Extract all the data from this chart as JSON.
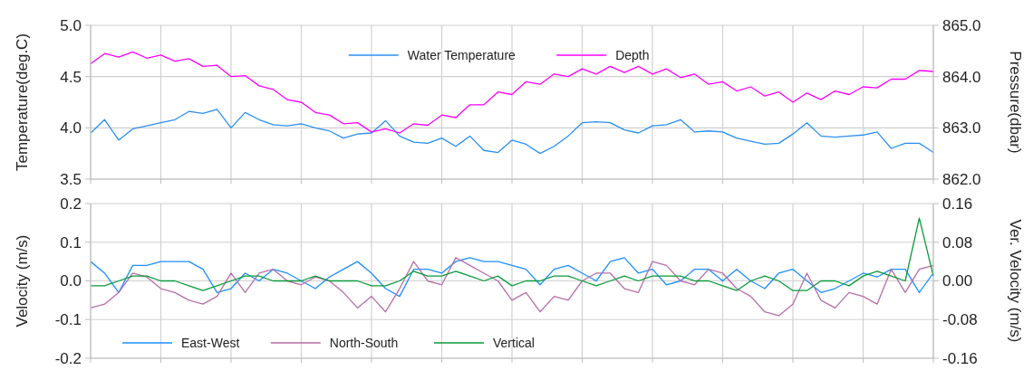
{
  "chart_data": [
    {
      "type": "line",
      "ylabel": "Temperature(deg.C)",
      "y2label": "Pressure(dbar)",
      "categories": [
        null,
        null,
        null,
        null,
        null,
        null,
        null,
        null,
        null,
        null,
        null,
        null,
        null,
        null,
        null,
        null,
        null,
        null,
        null,
        null,
        null,
        null,
        null,
        null,
        null,
        null,
        null,
        null,
        null,
        null,
        null,
        null,
        null,
        null,
        null,
        null,
        null,
        null,
        null,
        null,
        null,
        null,
        null,
        null,
        null,
        null,
        null,
        null,
        null,
        null,
        null,
        null,
        null,
        null,
        null,
        null,
        null,
        null,
        null,
        null,
        null
      ],
      "series": [
        {
          "name": "Water Temperature",
          "color": "#2a8ff0",
          "values": [
            3.95,
            4.08,
            3.88,
            3.99,
            4.02,
            4.05,
            4.08,
            4.16,
            4.14,
            4.18,
            4.0,
            4.15,
            4.08,
            4.03,
            4.02,
            4.04,
            4.0,
            3.97,
            3.9,
            3.94,
            3.95,
            4.07,
            3.92,
            3.86,
            3.85,
            3.9,
            3.82,
            3.92,
            3.78,
            3.76,
            3.88,
            3.84,
            3.75,
            3.82,
            3.92,
            4.05,
            4.06,
            4.05,
            3.98,
            3.95,
            4.02,
            4.03,
            4.08,
            3.96,
            3.97,
            3.96,
            3.9,
            3.87,
            3.84,
            3.85,
            3.94,
            4.05,
            3.92,
            3.91,
            3.92,
            3.93,
            3.96,
            3.8,
            3.85,
            3.85,
            3.76
          ]
        },
        {
          "name": "Depth",
          "color": "#ff00ff",
          "axis": "y2",
          "values": [
            864.25,
            864.45,
            864.38,
            864.48,
            864.36,
            864.42,
            864.3,
            864.35,
            864.2,
            864.22,
            864.0,
            864.02,
            863.82,
            863.75,
            863.55,
            863.5,
            863.3,
            863.25,
            863.08,
            863.1,
            862.92,
            862.98,
            862.9,
            863.08,
            863.05,
            863.25,
            863.2,
            863.45,
            863.45,
            863.7,
            863.65,
            863.9,
            863.85,
            864.05,
            864.0,
            864.15,
            864.05,
            864.2,
            864.08,
            864.2,
            864.05,
            864.15,
            863.98,
            864.05,
            863.85,
            863.9,
            863.72,
            863.8,
            863.62,
            863.7,
            863.5,
            863.68,
            863.55,
            863.72,
            863.65,
            863.8,
            863.78,
            863.95,
            863.95,
            864.12,
            864.1
          ]
        }
      ],
      "ylim": [
        3.5,
        5.0
      ],
      "yticks": [
        {
          "value": 3.5,
          "label": "3.5"
        },
        {
          "value": 4,
          "label": "4.0"
        },
        {
          "value": 4.5,
          "label": "4.5"
        },
        {
          "value": 5,
          "label": "5.0"
        }
      ],
      "y2lim": [
        862,
        865
      ],
      "y2ticks": [
        {
          "value": 862,
          "label": "862.0"
        },
        {
          "value": 863,
          "label": "863.0"
        },
        {
          "value": 864,
          "label": "864.0"
        },
        {
          "value": 865,
          "label": "865.0"
        }
      ],
      "grid": true,
      "legend": "top"
    },
    {
      "type": "line",
      "ylabel": "Velocity (m/s)",
      "y2label": "Ver. Velocity (m/s)",
      "categories": [
        null,
        null,
        null,
        null,
        null,
        null,
        null,
        null,
        null,
        null,
        null,
        null,
        null,
        null,
        null,
        null,
        null,
        null,
        null,
        null,
        null,
        null,
        null,
        null,
        null,
        null,
        null,
        null,
        null,
        null,
        null,
        null,
        null,
        null,
        null,
        null,
        null,
        null,
        null,
        null,
        null,
        null,
        null,
        null,
        null,
        null,
        null,
        null,
        null,
        null,
        null,
        null,
        null,
        null,
        null,
        null,
        null,
        null,
        null,
        null,
        null
      ],
      "series": [
        {
          "name": "East-West",
          "color": "#1e8fff",
          "values": [
            0.05,
            0.02,
            -0.03,
            0.04,
            0.04,
            0.05,
            0.05,
            0.05,
            0.03,
            -0.03,
            -0.02,
            0.02,
            0.0,
            0.03,
            0.02,
            0.0,
            -0.02,
            0.01,
            0.03,
            0.05,
            0.02,
            -0.02,
            -0.04,
            0.03,
            0.03,
            0.02,
            0.05,
            0.06,
            0.05,
            0.05,
            0.04,
            0.03,
            -0.01,
            0.03,
            0.04,
            0.02,
            0.0,
            0.05,
            0.06,
            0.02,
            0.03,
            -0.01,
            0.0,
            0.03,
            0.03,
            0.0,
            0.03,
            0.0,
            -0.02,
            0.02,
            0.03,
            0.0,
            -0.03,
            -0.02,
            0.0,
            0.02,
            0.01,
            0.03,
            0.03,
            -0.03,
            0.02
          ]
        },
        {
          "name": "North-South",
          "color": "#b56fa8",
          "values": [
            -0.07,
            -0.06,
            -0.03,
            0.02,
            0.01,
            -0.02,
            -0.03,
            -0.05,
            -0.06,
            -0.04,
            0.02,
            -0.03,
            0.02,
            0.03,
            0.0,
            -0.01,
            0.01,
            0.0,
            -0.03,
            -0.07,
            -0.04,
            -0.08,
            -0.02,
            0.05,
            0.0,
            -0.01,
            0.06,
            0.04,
            0.02,
            0.0,
            -0.05,
            -0.03,
            -0.08,
            -0.04,
            -0.05,
            0.0,
            0.02,
            0.02,
            -0.02,
            -0.03,
            0.05,
            0.04,
            0.0,
            -0.01,
            0.03,
            0.02,
            -0.02,
            -0.04,
            -0.08,
            -0.09,
            -0.06,
            0.02,
            -0.05,
            -0.07,
            -0.03,
            -0.04,
            -0.06,
            0.03,
            -0.03,
            0.03,
            0.04
          ]
        },
        {
          "name": "Vertical",
          "color": "#0a9a3a",
          "axis": "y2",
          "values": [
            -0.01,
            -0.01,
            0.0,
            0.01,
            0.01,
            0.0,
            0.0,
            -0.01,
            -0.02,
            -0.01,
            0.0,
            0.01,
            0.01,
            0.0,
            0.0,
            0.0,
            0.01,
            0.0,
            0.0,
            0.0,
            -0.01,
            -0.01,
            0.0,
            0.02,
            0.01,
            0.01,
            0.02,
            0.01,
            0.0,
            0.01,
            -0.01,
            0.0,
            0.0,
            0.01,
            0.01,
            0.0,
            -0.01,
            0.0,
            0.01,
            0.0,
            0.01,
            0.01,
            0.01,
            0.0,
            0.0,
            -0.01,
            -0.02,
            0.0,
            0.01,
            0.0,
            -0.02,
            -0.02,
            0.0,
            0.0,
            -0.01,
            0.01,
            0.02,
            0.01,
            0.0,
            0.13,
            0.01
          ]
        }
      ],
      "ylim": [
        -0.2,
        0.2
      ],
      "yticks": [
        {
          "value": -0.2,
          "label": "-0.2"
        },
        {
          "value": -0.1,
          "label": "-0.1"
        },
        {
          "value": 0,
          "label": "0.0"
        },
        {
          "value": 0.1,
          "label": "0.1"
        },
        {
          "value": 0.2,
          "label": "0.2"
        }
      ],
      "y2lim": [
        -0.16,
        0.16
      ],
      "y2ticks": [
        {
          "value": -0.16,
          "label": "-0.16"
        },
        {
          "value": -0.08,
          "label": "-0.08"
        },
        {
          "value": 0,
          "label": "0.00"
        },
        {
          "value": 0.08,
          "label": "0.08"
        },
        {
          "value": 0.16,
          "label": "0.16"
        }
      ],
      "grid": true,
      "legend": "bottom"
    }
  ]
}
